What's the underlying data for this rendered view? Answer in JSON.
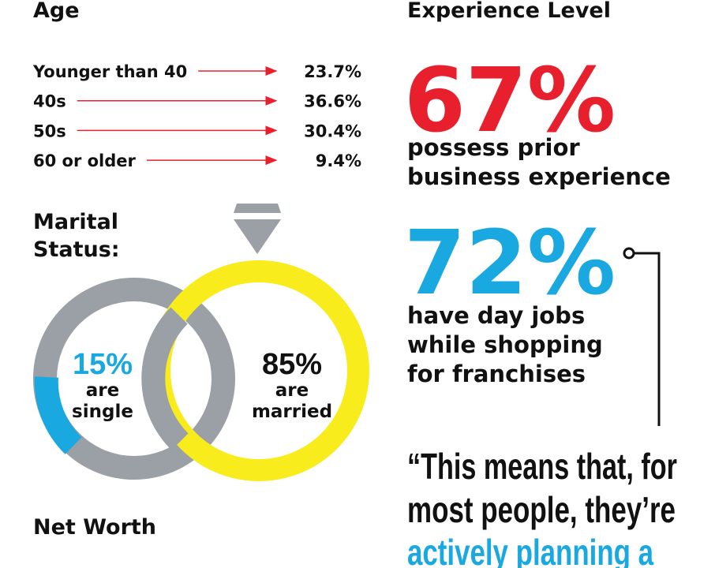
{
  "age": {
    "title": "Age",
    "rows": [
      {
        "label": "Younger than 40",
        "value": "23.7%"
      },
      {
        "label": "40s",
        "value": "36.6%"
      },
      {
        "label": "50s",
        "value": "30.4%"
      },
      {
        "label": "60 or older",
        "value": "9.4%"
      }
    ]
  },
  "marital": {
    "title_lines": [
      "Marital",
      "Status:"
    ],
    "single": {
      "percent": "15%",
      "label_lines": [
        "are",
        "single"
      ]
    },
    "married": {
      "percent": "85%",
      "label_lines": [
        "are",
        "married"
      ]
    }
  },
  "net_worth": {
    "title": "Net Worth"
  },
  "experience": {
    "title": "Experience Level",
    "stats": [
      {
        "percent": "67%",
        "lines": [
          "possess prior",
          "business experience"
        ]
      },
      {
        "percent": "72%",
        "lines": [
          "have day jobs",
          "while shopping",
          "for franchises"
        ]
      }
    ]
  },
  "quote": {
    "lines": [
      "“This means that, for",
      "most people, they’re",
      "actively planning a"
    ]
  }
}
